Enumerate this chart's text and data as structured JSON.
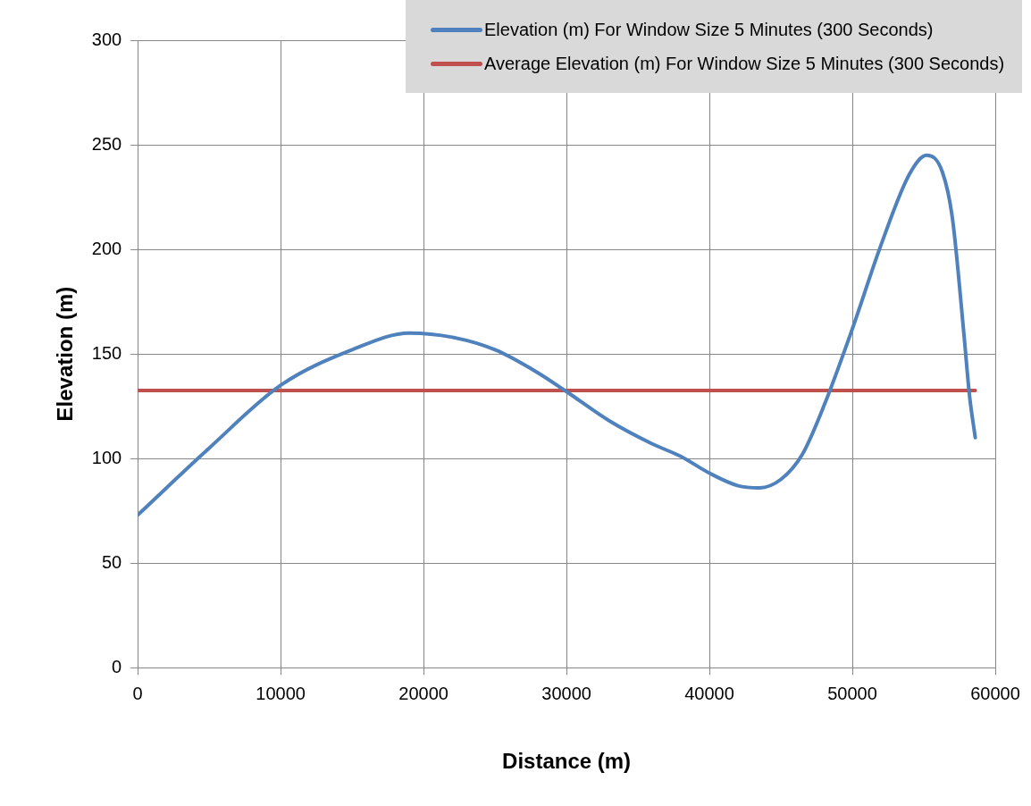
{
  "chart_data": {
    "type": "line",
    "xlabel": "Distance (m)",
    "ylabel": "Elevation (m)",
    "xlim": [
      0,
      60000
    ],
    "xticks": [
      0,
      10000,
      20000,
      30000,
      40000,
      50000,
      60000
    ],
    "ylim": [
      0,
      300
    ],
    "yticks": [
      0,
      50,
      100,
      150,
      200,
      250,
      300
    ],
    "grid": true,
    "legend": "top right",
    "marker": "none",
    "line_style": "solid",
    "series": [
      {
        "name": "Elevation (m) For Window Size 5 Minutes (300 Seconds)",
        "color": "#4f81bd",
        "x": [
          0,
          5000,
          10000,
          15000,
          19000,
          22000,
          25000,
          28000,
          30000,
          33000,
          36000,
          38000,
          40000,
          42000,
          43500,
          45000,
          46500,
          48000,
          50000,
          52000,
          54000,
          55200,
          56300,
          57000,
          57800,
          58200,
          58600
        ],
        "values": [
          73,
          105,
          135,
          152,
          160,
          158,
          152,
          141,
          132,
          118,
          107,
          101,
          93,
          87,
          86,
          90,
          102,
          125,
          162,
          202,
          236,
          245,
          237,
          215,
          160,
          130,
          110
        ]
      },
      {
        "name": "Average Elevation (m) For Window Size 5 Minutes (300 Seconds)",
        "color": "#c0504d",
        "x": [
          0,
          58600
        ],
        "values": [
          132.5,
          132.5
        ]
      }
    ]
  }
}
